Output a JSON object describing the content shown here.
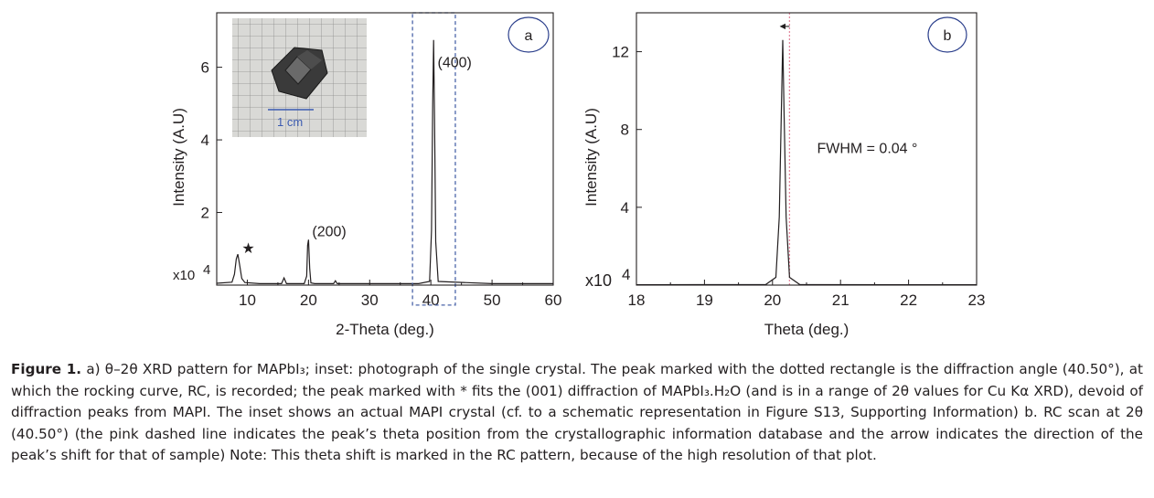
{
  "chart_data": [
    {
      "type": "line",
      "panel_label": "a",
      "xlabel": "2-Theta (deg.)",
      "ylabel": "Intensity (A.U)",
      "y_multiplier": "x10",
      "y_exponent": "4",
      "xlim": [
        5,
        60
      ],
      "ylim": [
        0,
        7.5
      ],
      "xticks": [
        10,
        20,
        30,
        40,
        50,
        60
      ],
      "yticks": [
        2,
        4,
        6
      ],
      "series": [
        {
          "x": [
            5,
            7.5,
            7.9,
            8.2,
            8.45,
            8.75,
            9.1,
            9.6,
            12,
            15.6,
            16.0,
            16.4,
            19.3,
            19.7,
            19.85,
            20.0,
            20.2,
            20.4,
            21,
            24.1,
            24.4,
            24.7,
            30,
            38,
            39.8,
            40.1,
            40.3,
            40.45,
            40.6,
            40.8,
            41.2,
            50,
            60
          ],
          "y": [
            0.05,
            0.08,
            0.3,
            0.72,
            0.85,
            0.55,
            0.18,
            0.07,
            0.04,
            0.04,
            0.2,
            0.04,
            0.04,
            0.25,
            1.1,
            1.25,
            0.45,
            0.06,
            0.04,
            0.04,
            0.12,
            0.04,
            0.04,
            0.04,
            0.1,
            1.5,
            5.0,
            6.75,
            4.6,
            1.2,
            0.1,
            0.04,
            0.04
          ]
        }
      ],
      "annotations": [
        {
          "text": "(400)",
          "x": 40.5,
          "y": 6.0
        },
        {
          "text": "(200)",
          "x": 20.0,
          "y": 1.35
        },
        {
          "text": "★",
          "x": 8.5,
          "y": 0.88,
          "color": "#2b3f8c"
        }
      ],
      "highlight_box": {
        "x": [
          37,
          44
        ],
        "y": [
          -0.55,
          7.5
        ],
        "style": "dashed",
        "color": "#4a64a8"
      },
      "inset": {
        "description_label": "1 cm"
      }
    },
    {
      "type": "line",
      "panel_label": "b",
      "xlabel": "Theta (deg.)",
      "ylabel": "Intensity (A.U)",
      "y_multiplier": "x10",
      "y_exponent": "4",
      "xlim": [
        18,
        23
      ],
      "ylim": [
        0,
        14
      ],
      "xticks": [
        18,
        19,
        20,
        21,
        22,
        23
      ],
      "yticks": [
        4,
        8,
        12
      ],
      "series": [
        {
          "x": [
            18,
            19.9,
            20.05,
            20.1,
            20.13,
            20.15,
            20.17,
            20.2,
            20.25,
            20.4,
            23
          ],
          "y": [
            0.02,
            0.03,
            0.4,
            3.5,
            9.0,
            12.6,
            9.0,
            3.5,
            0.4,
            0.03,
            0.02
          ]
        }
      ],
      "annotations": [
        {
          "text": "FWHM = 0.04 °",
          "x": 20.6,
          "y": 6.8
        }
      ],
      "reference_line": {
        "x": 20.25,
        "style": "dotted",
        "color": "#e48aa0"
      },
      "arrow": {
        "x_from": 20.25,
        "x_to": 20.12,
        "y": 13.3,
        "direction": "left"
      }
    }
  ],
  "caption": {
    "label": "Figure 1.",
    "text": "a)  θ–2θ XRD pattern for MAPbI₃; inset: photograph of the single crystal. The peak marked with the dotted rectangle is the diffraction angle (40.50°), at which the rocking curve, RC, is recorded; the peak marked with * fits the (001) diffraction of MAPbI₃.H₂O (and is in a range of 2θ values for Cu Kα XRD), devoid of diffraction peaks from MAPI. The inset shows an actual MAPI crystal (cf. to a schematic representation in Figure S13, Supporting Information) b. RC scan at 2θ (40.50°) (the pink dashed line indicates the peak’s theta position from the crystallographic information database and the arrow indicates the direction of the peak’s shift for that of sample) Note: This theta shift is marked in the RC pattern, because of the high resolution of that plot."
  }
}
